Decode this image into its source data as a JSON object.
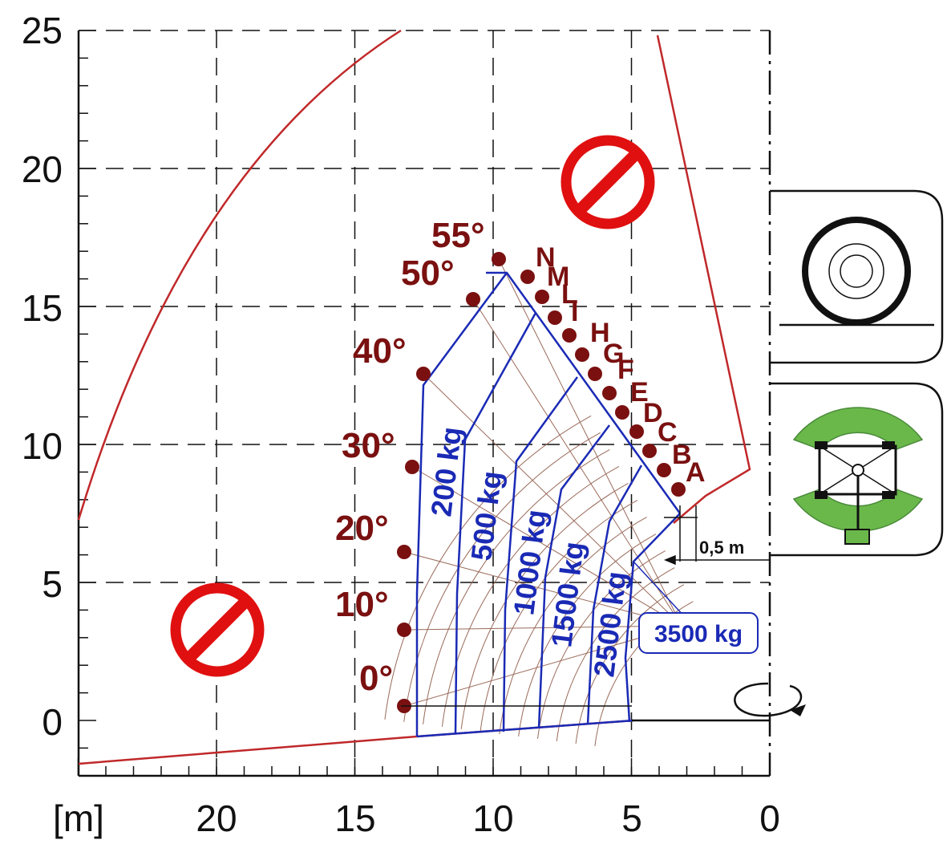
{
  "chart_data": {
    "type": "load-chart",
    "x_unit_label": "[m]",
    "x_ticks": [
      "20",
      "15",
      "10",
      "5",
      "0"
    ],
    "y_ticks": [
      "25",
      "20",
      "15",
      "10",
      "5",
      "0"
    ],
    "xlim": [
      25,
      0
    ],
    "ylim": [
      -2,
      25
    ],
    "boom_angles": [
      "0°",
      "10°",
      "20°",
      "30°",
      "40°",
      "50°",
      "55°"
    ],
    "extension_letters": [
      "A",
      "B",
      "C",
      "D",
      "E",
      "F",
      "G",
      "H",
      "I",
      "L",
      "M",
      "N"
    ],
    "load_zones": [
      "200 kg",
      "500 kg",
      "1000 kg",
      "1500 kg",
      "2500 kg",
      "3500 kg"
    ],
    "dimension_label": "0,5 m",
    "colors": {
      "envelope": "#c0282a",
      "load_curves": "#1a2ab5",
      "angle_markers": "#7a1010",
      "grid_fine": "#9a6a5a",
      "prohibited_sign": "#e01010",
      "stabilizer_arc": "#6ab84a"
    },
    "icons": [
      "prohibited-sign-icon",
      "wheel-icon",
      "outrigger-top-view-icon",
      "rotation-arrow-icon"
    ]
  }
}
